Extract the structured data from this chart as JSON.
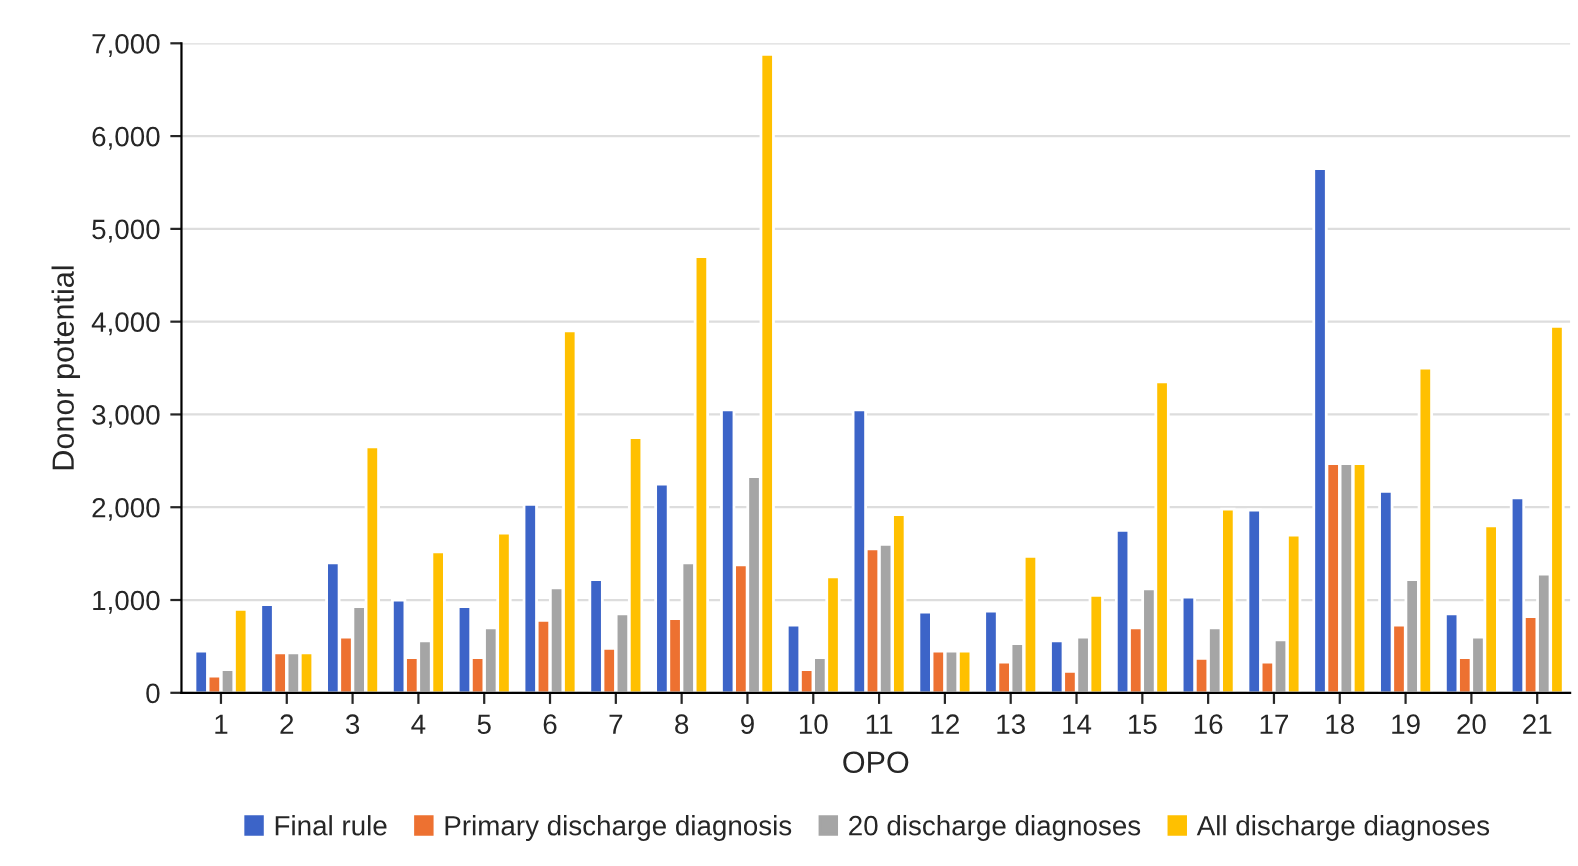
{
  "chart_data": {
    "type": "bar",
    "xlabel": "OPO",
    "ylabel": "Donor potential",
    "categories": [
      "1",
      "2",
      "3",
      "4",
      "5",
      "6",
      "7",
      "8",
      "9",
      "10",
      "11",
      "12",
      "13",
      "14",
      "15",
      "16",
      "17",
      "18",
      "19",
      "20",
      "21"
    ],
    "series": [
      {
        "name": "Final rule",
        "color": "#3c64c8",
        "values": [
          450,
          950,
          1400,
          1000,
          930,
          2030,
          1220,
          2250,
          3050,
          730,
          3050,
          870,
          880,
          560,
          1750,
          1030,
          1970,
          5650,
          2170,
          850,
          2100
        ]
      },
      {
        "name": "Primary discharge diagnosis",
        "color": "#ed7131",
        "values": [
          180,
          430,
          600,
          380,
          380,
          780,
          480,
          800,
          1380,
          250,
          1550,
          450,
          330,
          230,
          700,
          370,
          330,
          2470,
          730,
          380,
          820
        ]
      },
      {
        "name": "20 discharge diagnoses",
        "color": "#a5a5a5",
        "values": [
          250,
          430,
          930,
          560,
          700,
          1130,
          850,
          1400,
          2330,
          380,
          1600,
          450,
          530,
          600,
          1120,
          700,
          570,
          2470,
          1220,
          600,
          1280
        ]
      },
      {
        "name": "All discharge diagnoses",
        "color": "#ffc000",
        "values": [
          900,
          430,
          2650,
          1520,
          1720,
          3900,
          2750,
          4700,
          6880,
          1250,
          1920,
          450,
          1470,
          1050,
          3350,
          1980,
          1700,
          2470,
          3500,
          1800,
          3950
        ]
      }
    ],
    "ylim": [
      0,
      7000
    ],
    "yticks": [
      {
        "value": 0,
        "label": "0"
      },
      {
        "value": 1000,
        "label": "1,000"
      },
      {
        "value": 2000,
        "label": "2,000"
      },
      {
        "value": 3000,
        "label": "3,000"
      },
      {
        "value": 4000,
        "label": "4,000"
      },
      {
        "value": 5000,
        "label": "5,000"
      },
      {
        "value": 6000,
        "label": "6,000"
      },
      {
        "value": 7000,
        "label": "7,000"
      }
    ],
    "grid": "y",
    "legend": "bottom"
  }
}
